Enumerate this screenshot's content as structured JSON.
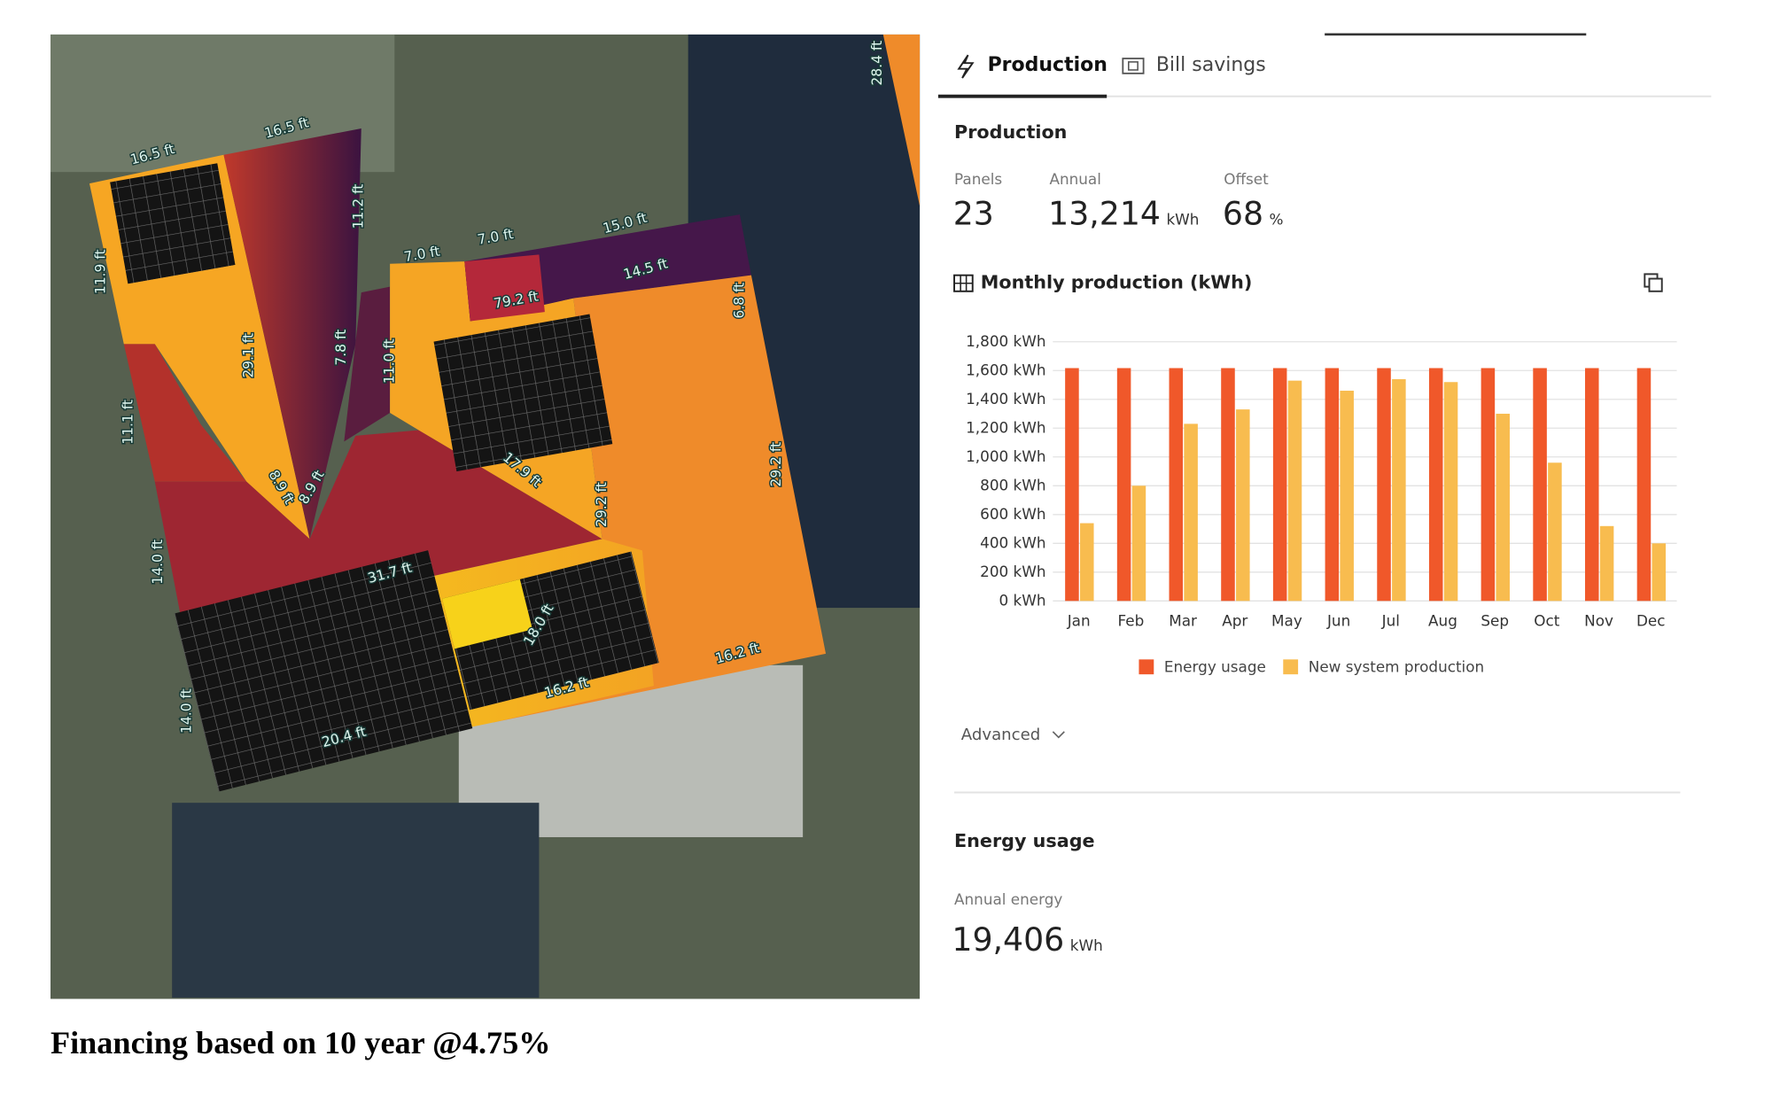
{
  "tabs": [
    "Production",
    "Bill savings"
  ],
  "production": {
    "heading": "Production",
    "stats": [
      {
        "label": "Panels",
        "value": "23"
      },
      {
        "label": "Annual",
        "value": "13,214",
        "unit": "kWh"
      },
      {
        "label": "Offset",
        "value": "68",
        "unit": "%"
      }
    ]
  },
  "chart_data": {
    "type": "bar",
    "title": "Monthly production (kWh)",
    "categories": [
      "Jan",
      "Feb",
      "Mar",
      "Apr",
      "May",
      "Jun",
      "Jul",
      "Aug",
      "Sep",
      "Oct",
      "Nov",
      "Dec"
    ],
    "series": [
      {
        "name": "Energy usage",
        "color": "#f0582a",
        "values": [
          1617,
          1617,
          1617,
          1617,
          1617,
          1617,
          1617,
          1617,
          1617,
          1617,
          1617,
          1617
        ]
      },
      {
        "name": "New system production",
        "color": "#f8bc4f",
        "values": [
          540,
          800,
          1230,
          1330,
          1530,
          1460,
          1540,
          1520,
          1300,
          960,
          520,
          400
        ]
      }
    ],
    "ylim": [
      0,
      1800
    ],
    "yticks": [
      {
        "value": 0,
        "label": "0 kWh"
      },
      {
        "value": 200,
        "label": "200 kWh"
      },
      {
        "value": 400,
        "label": "400 kWh"
      },
      {
        "value": 600,
        "label": "600 kWh"
      },
      {
        "value": 800,
        "label": "800 kWh"
      },
      {
        "value": 1000,
        "label": "1,000 kWh"
      },
      {
        "value": 1200,
        "label": "1,200 kWh"
      },
      {
        "value": 1400,
        "label": "1,400 kWh"
      },
      {
        "value": 1600,
        "label": "1,600 kWh"
      },
      {
        "value": 1800,
        "label": "1,800 kWh"
      }
    ],
    "grid": true,
    "legend": "bottom"
  },
  "advanced": "Advanced",
  "energy_usage": {
    "heading": "Energy usage",
    "label": "Annual energy",
    "value": "19,406",
    "unit": "kWh"
  },
  "roof_labels": [
    "16.5 ft",
    "16.5 ft",
    "11.9 ft",
    "11.2 ft",
    "7.0 ft",
    "7.0 ft",
    "15.0 ft",
    "14.5 ft",
    "79.2 ft",
    "29.1 ft",
    "7.8 ft",
    "11.0 ft",
    "6.8 ft",
    "11.1 ft",
    "17.9 ft",
    "29.2 ft",
    "29.2 ft",
    "8.9 ft",
    "8.9 ft",
    "14.0 ft",
    "31.7 ft",
    "18.0 ft",
    "16.2 ft",
    "16.2 ft",
    "14.0 ft",
    "20.4 ft",
    "28.4 ft"
  ],
  "caption": "Financing based on 10 year @4.75%"
}
